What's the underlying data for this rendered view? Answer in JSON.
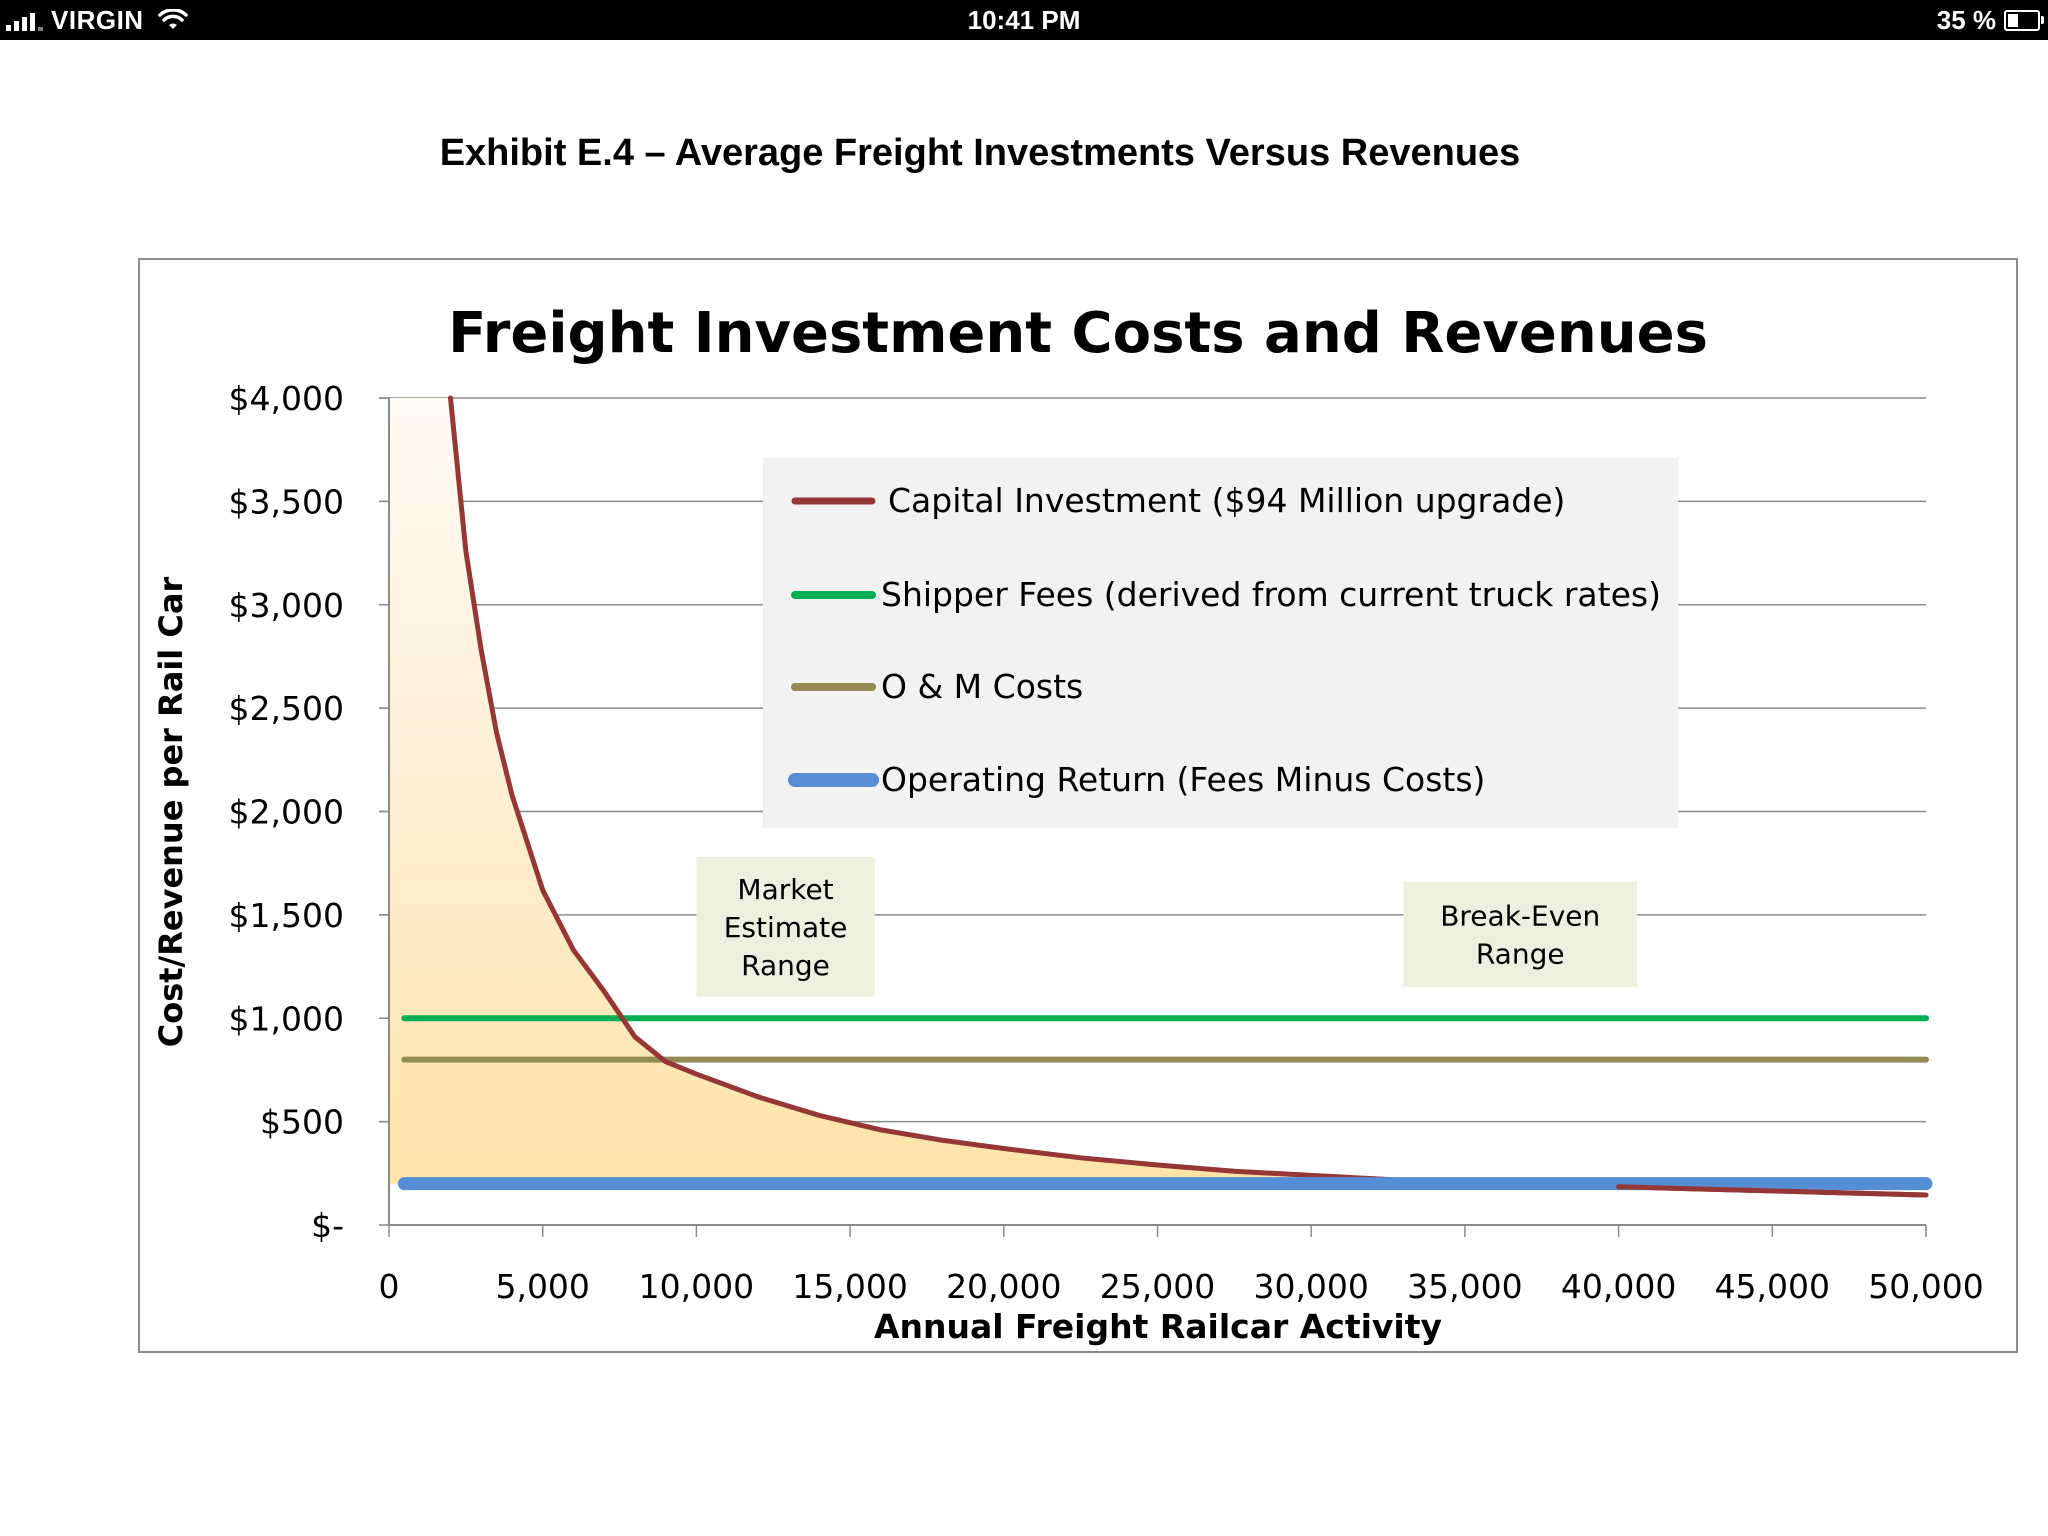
{
  "status_bar": {
    "carrier": "VIRGIN",
    "time": "10:41 PM",
    "battery": "35 %",
    "battery_level": 0.35,
    "signal_icon": "signal-bars-icon",
    "wifi_icon": "wifi-icon",
    "battery_icon": "battery-charging-icon"
  },
  "document": {
    "exhibit_title": "Exhibit E.4 – Average Freight Investments Versus Revenues"
  },
  "chart_data": {
    "type": "line",
    "title": "Freight Investment Costs and Revenues",
    "xlabel": "Annual Freight Railcar Activity",
    "ylabel": "Cost/Revenue per Rail Car",
    "xlim": [
      0,
      50000
    ],
    "ylim": [
      0,
      4000
    ],
    "x_ticks": [
      0,
      5000,
      10000,
      15000,
      20000,
      25000,
      30000,
      35000,
      40000,
      45000,
      50000
    ],
    "x_tick_labels": [
      "0",
      "5,000",
      "10,000",
      "15,000",
      "20,000",
      "25,000",
      "30,000",
      "35,000",
      "40,000",
      "45,000",
      "50,000"
    ],
    "y_ticks": [
      0,
      500,
      1000,
      1500,
      2000,
      2500,
      3000,
      3500,
      4000
    ],
    "y_tick_labels": [
      "$-",
      "$500",
      "$1,000",
      "$1,500",
      "$2,000",
      "$2,500",
      "$3,000",
      "$3,500",
      "$4,000"
    ],
    "grid": "horizontal",
    "legend_position": "top-center",
    "series": [
      {
        "name": "Capital Investment ($94 Million upgrade)",
        "color": "#953735",
        "x": [
          2000,
          2500,
          3000,
          3500,
          4000,
          4500,
          5000,
          6000,
          7000,
          8000,
          9000,
          10000,
          12000,
          14000,
          16000,
          18000,
          20000,
          22500,
          25000,
          27500,
          30000,
          32500,
          35000,
          37500,
          40000,
          42500,
          45000,
          47500,
          50000
        ],
        "y": [
          4000,
          3260,
          2780,
          2380,
          2080,
          1850,
          1620,
          1330,
          1130,
          910,
          790,
          730,
          620,
          530,
          460,
          410,
          370,
          325,
          290,
          260,
          240,
          220,
          205,
          195,
          185,
          175,
          165,
          155,
          145
        ]
      },
      {
        "name": "Shipper Fees (derived from current truck rates)",
        "color": "#00b050",
        "x": [
          500,
          50000
        ],
        "y": [
          1000,
          1000
        ]
      },
      {
        "name": "O & M Costs",
        "color": "#948a54",
        "x": [
          500,
          50000
        ],
        "y": [
          800,
          800
        ]
      },
      {
        "name": "Operating Return (Fees Minus Costs)",
        "color": "#558ed5",
        "x": [
          500,
          50000
        ],
        "y": [
          200,
          200
        ]
      }
    ],
    "annotations": [
      {
        "id": "market-estimate-range",
        "text": [
          "Market",
          "Estimate",
          "Range"
        ],
        "x_range": [
          10000,
          15800
        ],
        "y_range": [
          1105,
          1780
        ]
      },
      {
        "id": "break-even-range",
        "text": [
          "Break-Even",
          "Range"
        ],
        "x_range": [
          33000,
          40600
        ],
        "y_range": [
          1150,
          1660
        ]
      }
    ],
    "shaded_region": {
      "description_color": "#fde3a7",
      "under_series": "Capital Investment ($94 Million upgrade)"
    }
  }
}
